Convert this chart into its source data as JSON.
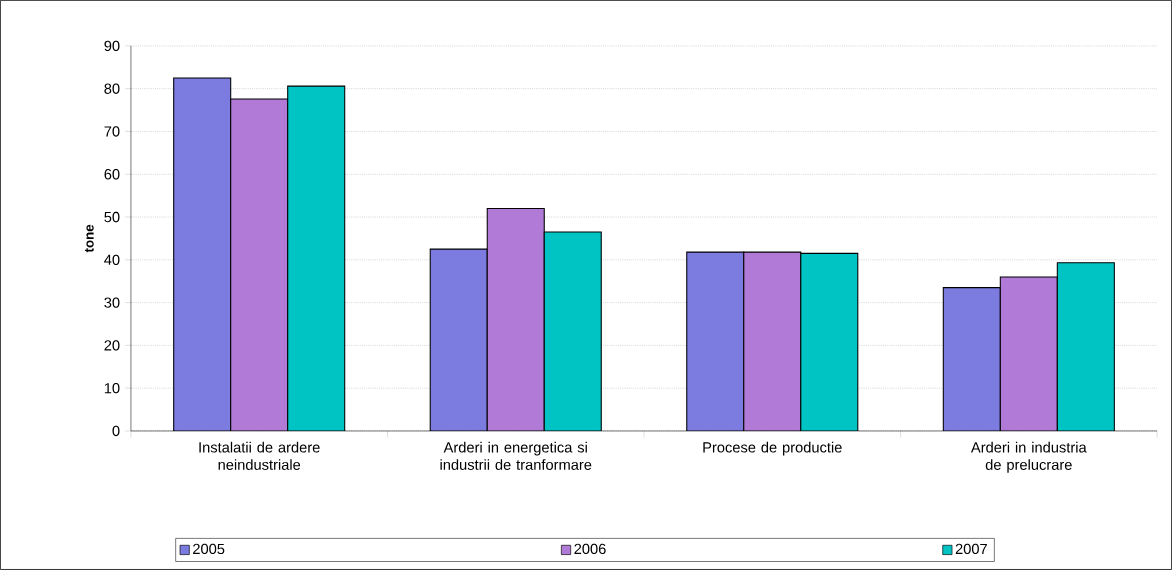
{
  "chart_data": {
    "type": "bar",
    "ylabel": "tone",
    "categories": [
      "Instalatii de ardere neindustriale",
      "Arderi in energetica si industrii de tranformare",
      "Procese de productie",
      "Arderi in industria de prelucrare"
    ],
    "series": [
      {
        "name": "2005",
        "color": "#7b7be0",
        "values": [
          82.5,
          42.5,
          41.8,
          33.5
        ]
      },
      {
        "name": "2006",
        "color": "#b07ad6",
        "values": [
          77.6,
          52,
          41.8,
          36
        ]
      },
      {
        "name": "2007",
        "color": "#00c4c4",
        "values": [
          80.6,
          46.5,
          41.5,
          39.3
        ]
      }
    ],
    "ylim": [
      0,
      90
    ],
    "yticks": [
      0,
      10,
      20,
      30,
      40,
      50,
      60,
      70,
      80,
      90
    ],
    "grid": "y",
    "legend": "bottom"
  }
}
